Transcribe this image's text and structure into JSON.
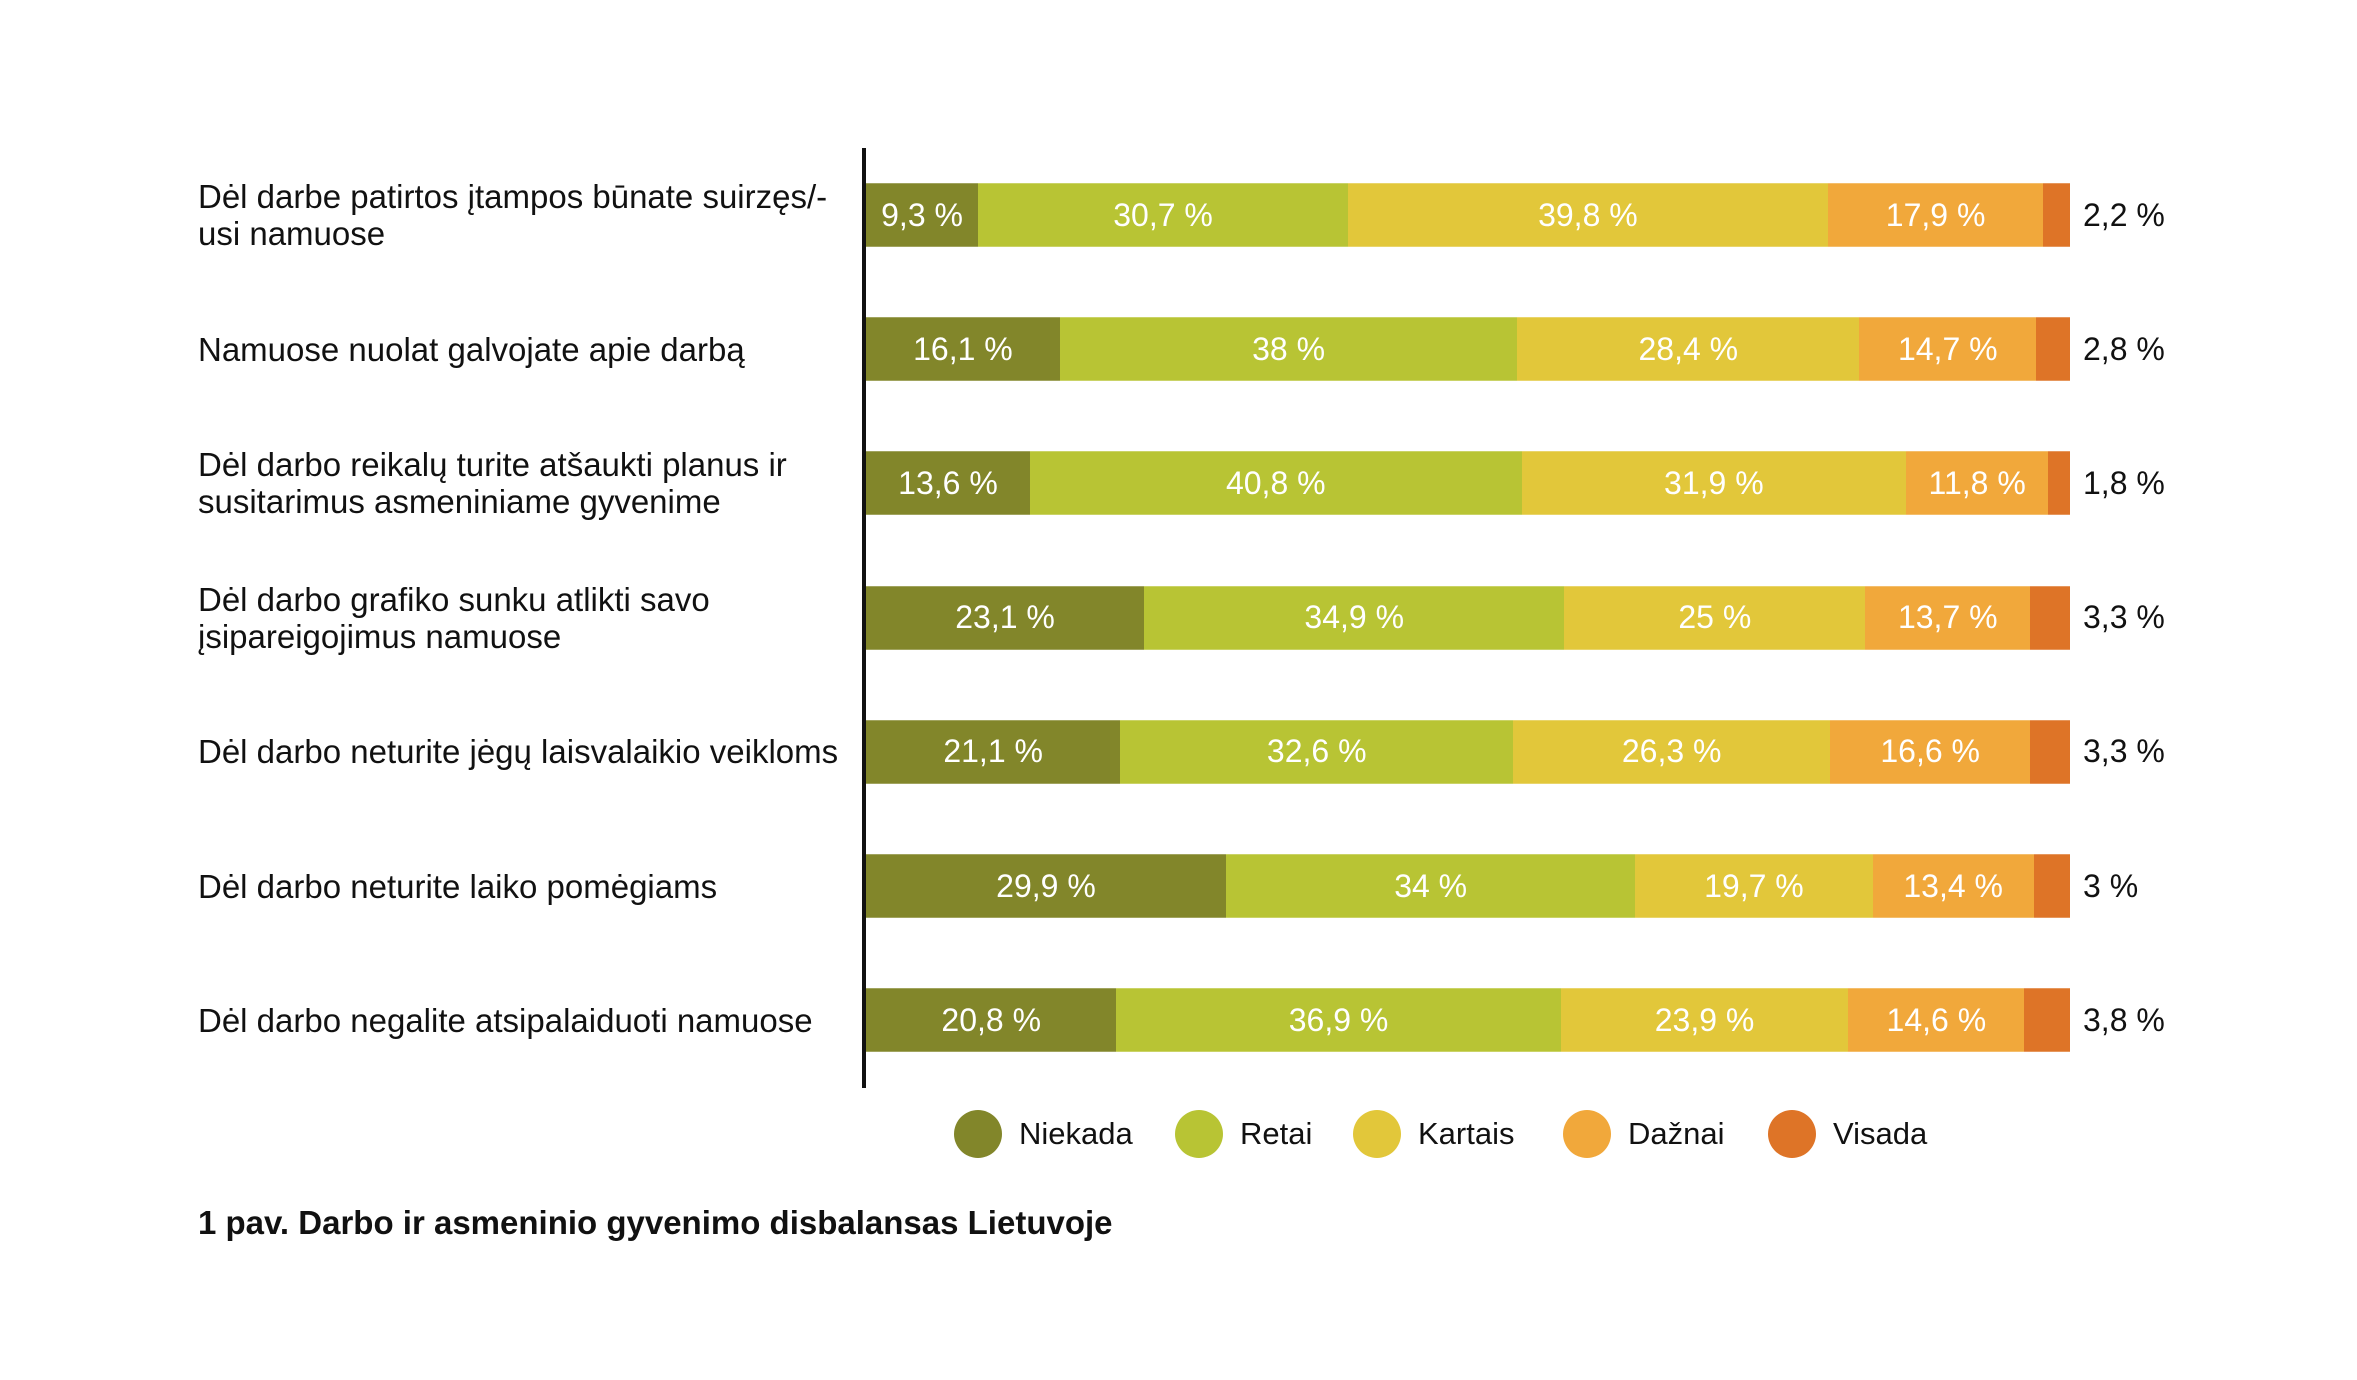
{
  "chart_data": {
    "type": "bar",
    "orientation": "horizontal",
    "stacked": true,
    "normalized": true,
    "title": "1 pav. Darbo ir asmeninio gyvenimo disbalansas Lietuvoje",
    "xlabel": "",
    "ylabel": "",
    "xlim": [
      0,
      100
    ],
    "grid": false,
    "legend_position": "bottom",
    "value_suffix": " %",
    "decimal_separator": ",",
    "categories": [
      "Dėl darbe patirtos įtampos būnate suirzęs/-usi namuose",
      "Namuose nuolat galvojate apie darbą",
      "Dėl darbo reikalų turite atšaukti planus ir susitarimus asmeniniame gyvenime",
      "Dėl darbo grafiko sunku atlikti savo įsipareigojimus namuose",
      "Dėl darbo neturite jėgų laisvalaikio veikloms",
      "Dėl darbo neturite laiko pomėgiams",
      "Dėl darbo negalite atsipalaiduoti namuose"
    ],
    "series": [
      {
        "name": "Niekada",
        "color": "#82862A",
        "values": [
          9.3,
          16.1,
          13.6,
          23.1,
          21.1,
          29.9,
          20.8
        ],
        "labels": [
          "9,3 %",
          "16,1 %",
          "13,6 %",
          "23,1 %",
          "21,1 %",
          "29,9 %",
          "20,8 %"
        ]
      },
      {
        "name": "Retai",
        "color": "#B8C434",
        "values": [
          30.7,
          38,
          40.8,
          34.9,
          32.6,
          34,
          36.9
        ],
        "labels": [
          "30,7 %",
          "38 %",
          "40,8 %",
          "34,9 %",
          "32,6 %",
          "34 %",
          "36,9 %"
        ]
      },
      {
        "name": "Kartais",
        "color": "#E2C73A",
        "values": [
          39.8,
          28.4,
          31.9,
          25,
          26.3,
          19.7,
          23.9
        ],
        "labels": [
          "39,8 %",
          "28,4 %",
          "31,9 %",
          "25 %",
          "26,3 %",
          "19,7 %",
          "23,9 %"
        ]
      },
      {
        "name": "Dažnai",
        "color": "#F1A83B",
        "values": [
          17.9,
          14.7,
          11.8,
          13.7,
          16.6,
          13.4,
          14.6
        ],
        "labels": [
          "17,9 %",
          "14,7 %",
          "11,8 %",
          "13,7 %",
          "16,6 %",
          "13,4 %",
          "14,6 %"
        ]
      },
      {
        "name": "Visada",
        "color": "#DE7427",
        "values": [
          2.2,
          2.8,
          1.8,
          3.3,
          3.3,
          3,
          3.8
        ],
        "labels": [
          "2,2 %",
          "2,8 %",
          "1,8 %",
          "3,3 %",
          "3,3 %",
          "3 %",
          "3,8 %"
        ],
        "label_placement": "outside-right"
      }
    ]
  }
}
